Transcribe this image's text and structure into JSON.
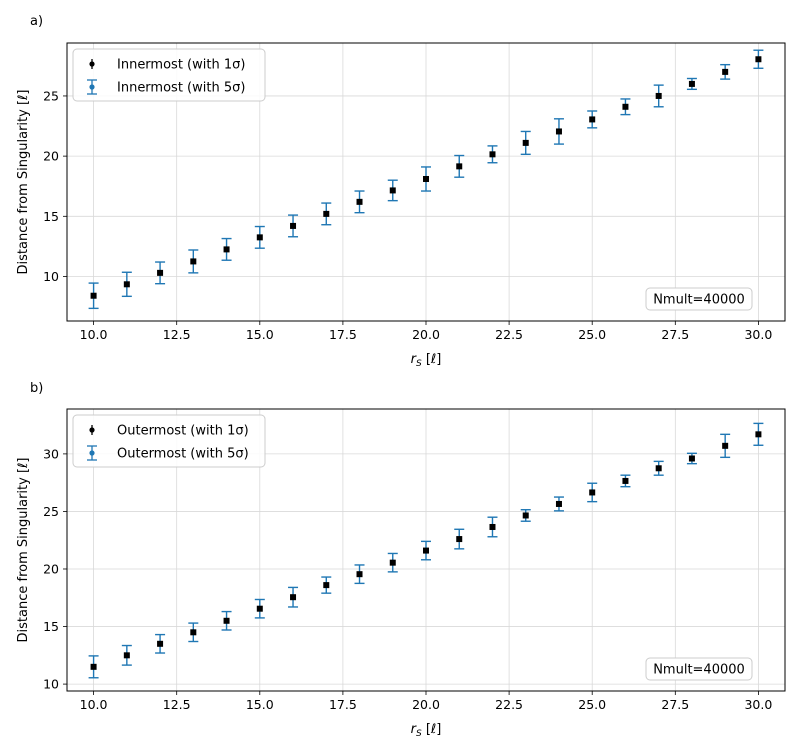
{
  "chart_data": [
    {
      "type": "scatter",
      "panel_label": "a)",
      "xlabel_base": "r",
      "xlabel_sub": "S",
      "xlabel_unit": "[ℓ]",
      "ylabel": "Distance from Singularity [ℓ]",
      "xlim": [
        9.2,
        30.8
      ],
      "ylim": [
        6.3,
        29.4
      ],
      "xticks": [
        "10.0",
        "12.5",
        "15.0",
        "17.5",
        "20.0",
        "22.5",
        "25.0",
        "27.5",
        "30.0"
      ],
      "xtick_values": [
        10,
        12.5,
        15,
        17.5,
        20,
        22.5,
        25,
        27.5,
        30
      ],
      "yticks": [
        "10",
        "15",
        "20",
        "25"
      ],
      "ytick_values": [
        10,
        15,
        20,
        25
      ],
      "grid": true,
      "legend_position": "top-left",
      "annotation": "Nmult=40000",
      "x": [
        10,
        11,
        12,
        13,
        14,
        15,
        16,
        17,
        18,
        19,
        20,
        21,
        22,
        23,
        24,
        25,
        26,
        27,
        28,
        29,
        30
      ],
      "series": [
        {
          "name": "Innermost (with 1σ)",
          "color": "#000000",
          "y": [
            8.4,
            9.35,
            10.3,
            11.25,
            12.25,
            13.25,
            14.2,
            15.2,
            16.2,
            17.15,
            18.1,
            19.15,
            20.15,
            21.1,
            22.05,
            23.05,
            24.1,
            25.0,
            26.0,
            27.0,
            28.05
          ],
          "err": [
            0.15,
            0.15,
            0.15,
            0.15,
            0.15,
            0.15,
            0.15,
            0.15,
            0.15,
            0.15,
            0.15,
            0.15,
            0.15,
            0.15,
            0.15,
            0.15,
            0.15,
            0.15,
            0.15,
            0.15,
            0.15
          ]
        },
        {
          "name": "Innermost (with 5σ)",
          "color": "#1f77b4",
          "y": [
            8.4,
            9.35,
            10.3,
            11.25,
            12.25,
            13.25,
            14.2,
            15.2,
            16.2,
            17.15,
            18.1,
            19.15,
            20.15,
            21.1,
            22.05,
            23.05,
            24.1,
            25.0,
            26.0,
            27.0,
            28.05
          ],
          "err": [
            1.05,
            1.0,
            0.9,
            0.95,
            0.9,
            0.9,
            0.9,
            0.9,
            0.9,
            0.85,
            1.0,
            0.9,
            0.7,
            0.95,
            1.05,
            0.7,
            0.65,
            0.9,
            0.45,
            0.6,
            0.75
          ]
        }
      ]
    },
    {
      "type": "scatter",
      "panel_label": "b)",
      "xlabel_base": "r",
      "xlabel_sub": "S",
      "xlabel_unit": "[ℓ]",
      "ylabel": "Distance from Singularity [ℓ]",
      "xlim": [
        9.2,
        30.8
      ],
      "ylim": [
        9.4,
        33.9
      ],
      "xticks": [
        "10.0",
        "12.5",
        "15.0",
        "17.5",
        "20.0",
        "22.5",
        "25.0",
        "27.5",
        "30.0"
      ],
      "xtick_values": [
        10,
        12.5,
        15,
        17.5,
        20,
        22.5,
        25,
        27.5,
        30
      ],
      "yticks": [
        "10",
        "15",
        "20",
        "25",
        "30"
      ],
      "ytick_values": [
        10,
        15,
        20,
        25,
        30
      ],
      "grid": true,
      "legend_position": "top-left",
      "annotation": "Nmult=40000",
      "x": [
        10,
        11,
        12,
        13,
        14,
        15,
        16,
        17,
        18,
        19,
        20,
        21,
        22,
        23,
        24,
        25,
        26,
        27,
        28,
        29,
        30
      ],
      "series": [
        {
          "name": "Outermost (with 1σ)",
          "color": "#000000",
          "y": [
            11.5,
            12.5,
            13.5,
            14.5,
            15.5,
            16.55,
            17.55,
            18.6,
            19.55,
            20.55,
            21.6,
            22.6,
            23.65,
            24.65,
            25.65,
            26.65,
            27.65,
            28.75,
            29.6,
            30.7,
            31.7
          ],
          "err": [
            0.15,
            0.15,
            0.15,
            0.15,
            0.15,
            0.15,
            0.15,
            0.15,
            0.15,
            0.15,
            0.15,
            0.15,
            0.15,
            0.15,
            0.15,
            0.15,
            0.15,
            0.15,
            0.15,
            0.15,
            0.15
          ]
        },
        {
          "name": "Outermost (with 5σ)",
          "color": "#1f77b4",
          "y": [
            11.5,
            12.5,
            13.5,
            14.5,
            15.5,
            16.55,
            17.55,
            18.6,
            19.55,
            20.55,
            21.6,
            22.6,
            23.65,
            24.65,
            25.65,
            26.65,
            27.65,
            28.75,
            29.6,
            30.7,
            31.7
          ],
          "err": [
            0.95,
            0.85,
            0.8,
            0.8,
            0.8,
            0.8,
            0.85,
            0.7,
            0.8,
            0.8,
            0.8,
            0.85,
            0.85,
            0.5,
            0.6,
            0.8,
            0.5,
            0.6,
            0.45,
            1.0,
            0.95
          ]
        }
      ]
    }
  ]
}
